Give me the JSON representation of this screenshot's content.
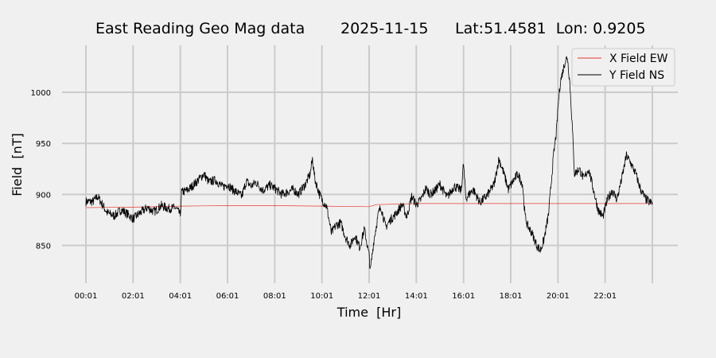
{
  "chart_data": {
    "type": "line",
    "title": {
      "name": "East Reading Geo Mag data",
      "date": "2025-11-15",
      "coords": "Lat:51.4581  Lon: 0.9205"
    },
    "xlabel": "Time  [Hr]",
    "ylabel": "Field  [nT]",
    "x_ticks": [
      "00:01",
      "02:01",
      "04:01",
      "06:01",
      "08:01",
      "10:01",
      "12:01",
      "14:01",
      "16:01",
      "18:01",
      "20:01",
      "22:01"
    ],
    "x_range_hours": [
      0,
      24
    ],
    "y_ticks": [
      850,
      900,
      950,
      1000
    ],
    "ylim": [
      813,
      1046
    ],
    "grid": true,
    "legend": {
      "position": "top-right"
    },
    "colors": {
      "x_field": "#e8392f",
      "y_field": "#000000",
      "grid": "#cbcbcb",
      "background": "#f0f0f0"
    },
    "series": [
      {
        "name": "X Field EW",
        "key": "x_field",
        "points": [
          [
            0,
            887
          ],
          [
            2,
            887.5
          ],
          [
            4,
            888.5
          ],
          [
            6,
            889
          ],
          [
            8,
            889
          ],
          [
            10,
            888.5
          ],
          [
            12,
            888
          ],
          [
            12.3,
            890
          ],
          [
            14,
            891
          ],
          [
            16,
            891
          ],
          [
            18,
            891
          ],
          [
            20,
            891
          ],
          [
            22,
            891
          ],
          [
            24,
            891
          ]
        ]
      },
      {
        "name": "Y Field NS",
        "key": "y_field",
        "points": [
          [
            0,
            893
          ],
          [
            0.3,
            893
          ],
          [
            0.5,
            898
          ],
          [
            0.7,
            890
          ],
          [
            0.9,
            882
          ],
          [
            1.2,
            879
          ],
          [
            1.5,
            885
          ],
          [
            1.8,
            880
          ],
          [
            2.0,
            876
          ],
          [
            2.3,
            882
          ],
          [
            2.6,
            887
          ],
          [
            2.9,
            883
          ],
          [
            3.2,
            889
          ],
          [
            3.5,
            886
          ],
          [
            3.8,
            887
          ],
          [
            4.0,
            880
          ],
          [
            4.05,
            902
          ],
          [
            4.3,
            904
          ],
          [
            4.5,
            908
          ],
          [
            4.8,
            915
          ],
          [
            5.0,
            920
          ],
          [
            5.2,
            912
          ],
          [
            5.5,
            914
          ],
          [
            5.8,
            907
          ],
          [
            6.0,
            910
          ],
          [
            6.2,
            905
          ],
          [
            6.4,
            902
          ],
          [
            6.6,
            898
          ],
          [
            6.8,
            913
          ],
          [
            7.0,
            908
          ],
          [
            7.2,
            912
          ],
          [
            7.5,
            904
          ],
          [
            7.8,
            909
          ],
          [
            8.0,
            906
          ],
          [
            8.3,
            900
          ],
          [
            8.6,
            903
          ],
          [
            8.8,
            905
          ],
          [
            9.0,
            900
          ],
          [
            9.3,
            910
          ],
          [
            9.5,
            920
          ],
          [
            9.6,
            935
          ],
          [
            9.7,
            915
          ],
          [
            9.9,
            900
          ],
          [
            10.0,
            895
          ],
          [
            10.2,
            888
          ],
          [
            10.4,
            862
          ],
          [
            10.6,
            870
          ],
          [
            10.8,
            872
          ],
          [
            11.0,
            858
          ],
          [
            11.2,
            850
          ],
          [
            11.4,
            860
          ],
          [
            11.6,
            848
          ],
          [
            11.8,
            866
          ],
          [
            12.0,
            840
          ],
          [
            12.05,
            825
          ],
          [
            12.2,
            855
          ],
          [
            12.4,
            882
          ],
          [
            12.5,
            888
          ],
          [
            12.7,
            868
          ],
          [
            12.9,
            875
          ],
          [
            13.1,
            880
          ],
          [
            13.4,
            890
          ],
          [
            13.6,
            878
          ],
          [
            13.8,
            898
          ],
          [
            14.0,
            890
          ],
          [
            14.2,
            895
          ],
          [
            14.4,
            906
          ],
          [
            14.6,
            900
          ],
          [
            14.8,
            904
          ],
          [
            15.0,
            910
          ],
          [
            15.3,
            897
          ],
          [
            15.6,
            908
          ],
          [
            15.9,
            904
          ],
          [
            16.0,
            930
          ],
          [
            16.1,
            896
          ],
          [
            16.4,
            905
          ],
          [
            16.7,
            892
          ],
          [
            17.0,
            899
          ],
          [
            17.3,
            910
          ],
          [
            17.5,
            935
          ],
          [
            17.7,
            921
          ],
          [
            17.9,
            905
          ],
          [
            18.1,
            913
          ],
          [
            18.3,
            920
          ],
          [
            18.5,
            910
          ],
          [
            18.6,
            880
          ],
          [
            18.7,
            870
          ],
          [
            18.9,
            862
          ],
          [
            19.1,
            850
          ],
          [
            19.25,
            845
          ],
          [
            19.4,
            855
          ],
          [
            19.6,
            880
          ],
          [
            19.8,
            935
          ],
          [
            19.95,
            965
          ],
          [
            20.0,
            985
          ],
          [
            20.1,
            1010
          ],
          [
            20.3,
            1030
          ],
          [
            20.4,
            1035
          ],
          [
            20.5,
            1010
          ],
          [
            20.6,
            970
          ],
          [
            20.7,
            920
          ],
          [
            20.9,
            925
          ],
          [
            21.1,
            915
          ],
          [
            21.3,
            925
          ],
          [
            21.5,
            905
          ],
          [
            21.7,
            885
          ],
          [
            21.9,
            878
          ],
          [
            22.1,
            895
          ],
          [
            22.3,
            904
          ],
          [
            22.5,
            895
          ],
          [
            22.7,
            915
          ],
          [
            22.9,
            938
          ],
          [
            23.1,
            930
          ],
          [
            23.3,
            920
          ],
          [
            23.5,
            905
          ],
          [
            23.7,
            896
          ],
          [
            23.9,
            892
          ],
          [
            24.0,
            892
          ]
        ]
      }
    ]
  }
}
